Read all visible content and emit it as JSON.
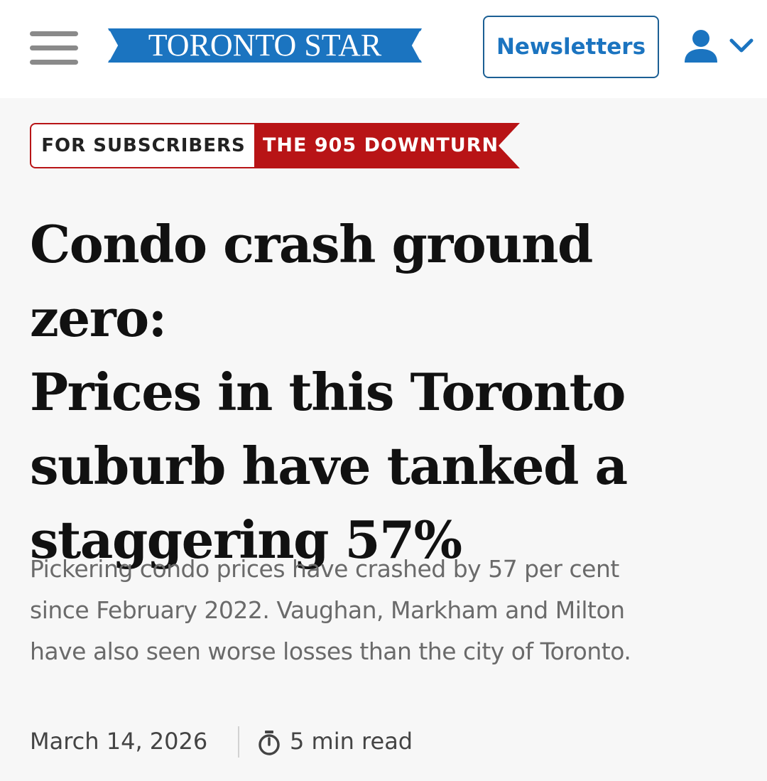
{
  "header": {
    "logo_text": "TORONTO STAR",
    "newsletters_label": "Newsletters",
    "icons": {
      "menu": "hamburger-menu-icon",
      "account": "user-icon",
      "dropdown": "chevron-down-icon"
    },
    "colors": {
      "brand_blue": "#1b74c0",
      "border_blue": "#1b5f94"
    }
  },
  "tags": {
    "subscribers": "FOR SUBSCRIBERS",
    "series": "THE 905 DOWNTURN",
    "colors": {
      "series_red": "#b81416"
    }
  },
  "article": {
    "headline_lines": [
      "Condo crash ground zero:",
      "Prices in this Toronto",
      "suburb have tanked a",
      "staggering 57%"
    ],
    "dek_lines": [
      "Pickering condo prices have crashed by 57 per cent",
      "since February 2022. Vaughan, Markham and Milton",
      "have also seen worse losses than the city of Toronto."
    ],
    "date": "March 14, 2026",
    "read_time": "5 min read",
    "read_time_icon": "stopwatch-icon"
  }
}
